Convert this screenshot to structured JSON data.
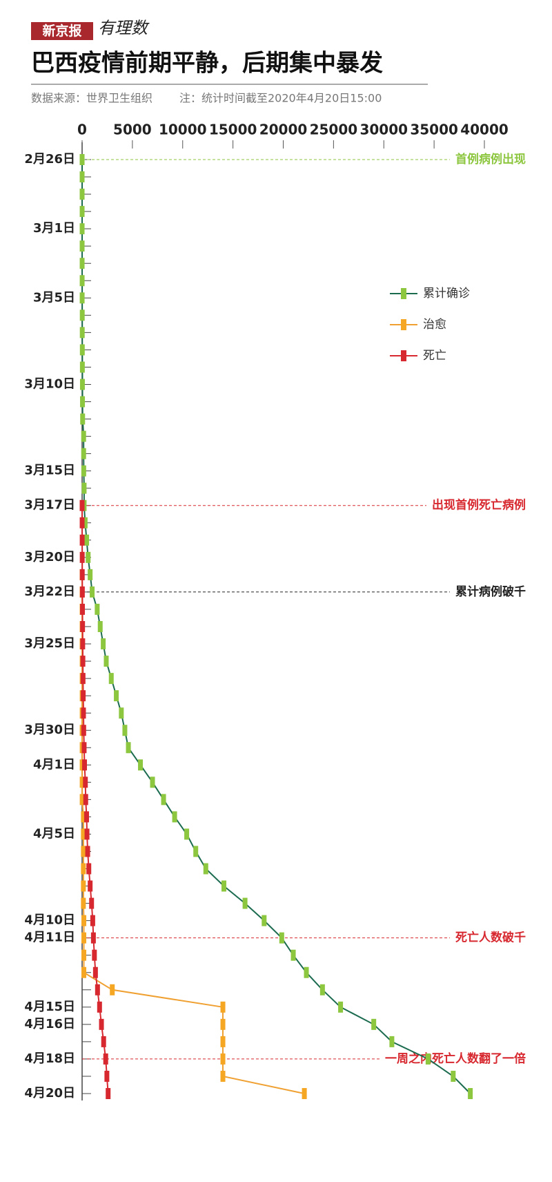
{
  "brand": {
    "name": "新京报",
    "column": "有理数"
  },
  "chart_data": {
    "type": "line",
    "title": "巴西疫情前期平静，后期集中暴发",
    "source": "数据来源：世界卫生组织",
    "note": "注：统计时间截至2020年4月20日15:00",
    "categories": [
      "2月26日",
      null,
      null,
      null,
      "3月1日",
      null,
      null,
      null,
      "3月5日",
      null,
      null,
      null,
      null,
      "3月10日",
      null,
      null,
      null,
      null,
      "3月15日",
      null,
      "3月17日",
      null,
      null,
      "3月20日",
      null,
      "3月22日",
      null,
      null,
      "3月25日",
      null,
      null,
      null,
      null,
      "3月30日",
      null,
      "4月1日",
      null,
      null,
      null,
      "4月5日",
      null,
      null,
      null,
      null,
      "4月10日",
      "4月11日",
      null,
      null,
      null,
      "4月15日",
      "4月16日",
      null,
      "4月18日",
      null,
      "4月20日"
    ],
    "series": [
      {
        "name": "累计确诊",
        "color": "#8dc63f",
        "line_color": "#1b6b4f",
        "values": [
          1,
          1,
          1,
          2,
          2,
          2,
          2,
          4,
          4,
          13,
          13,
          20,
          25,
          31,
          38,
          52,
          151,
          151,
          162,
          200,
          200,
          300,
          450,
          600,
          800,
          1000,
          1500,
          1800,
          2100,
          2400,
          2900,
          3400,
          3900,
          4250,
          4600,
          5800,
          7000,
          8100,
          9200,
          10400,
          11300,
          12300,
          14100,
          16200,
          18100,
          19850,
          21000,
          22300,
          23900,
          25700,
          29000,
          30800,
          34400,
          36900,
          38600
        ]
      },
      {
        "name": "治愈",
        "color": "#f5a623",
        "line_color": "#f0a030",
        "values": [
          null,
          null,
          null,
          null,
          null,
          null,
          null,
          null,
          null,
          null,
          null,
          null,
          null,
          null,
          null,
          null,
          null,
          null,
          null,
          null,
          null,
          null,
          null,
          null,
          2,
          2,
          2,
          2,
          2,
          6,
          6,
          6,
          6,
          6,
          6,
          6,
          6,
          6,
          127,
          127,
          127,
          127,
          127,
          127,
          173,
          173,
          173,
          173,
          3000,
          14000,
          14000,
          14000,
          14000,
          14000,
          22100
        ]
      },
      {
        "name": "死亡",
        "color": "#d7282f",
        "line_color": "#d7282f",
        "values": [
          null,
          null,
          null,
          null,
          null,
          null,
          null,
          null,
          null,
          null,
          null,
          null,
          null,
          null,
          null,
          null,
          null,
          null,
          null,
          null,
          1,
          3,
          6,
          11,
          15,
          25,
          34,
          46,
          59,
          77,
          92,
          111,
          136,
          159,
          201,
          240,
          324,
          359,
          445,
          486,
          553,
          667,
          800,
          941,
          1056,
          1124,
          1223,
          1328,
          1532,
          1736,
          1924,
          2141,
          2347,
          2462,
          2587
        ]
      }
    ],
    "xlim": [
      0,
      40000
    ],
    "xticks": [
      0,
      5000,
      10000,
      15000,
      20000,
      25000,
      30000,
      35000,
      40000
    ],
    "legend": "right",
    "annotations": [
      {
        "text": "首例病例出现",
        "category": "2月26日",
        "color": "#8dc63f"
      },
      {
        "text": "出现首例死亡病例",
        "category": "3月17日",
        "color": "#d7282f"
      },
      {
        "text": "累计病例破千",
        "category": "3月22日",
        "color": "#222222"
      },
      {
        "text": "死亡人数破千",
        "category": "4月11日",
        "color": "#d7282f"
      },
      {
        "text": "一周之内死亡人数翻了一倍",
        "category": "4月18日",
        "color": "#d7282f"
      }
    ]
  }
}
